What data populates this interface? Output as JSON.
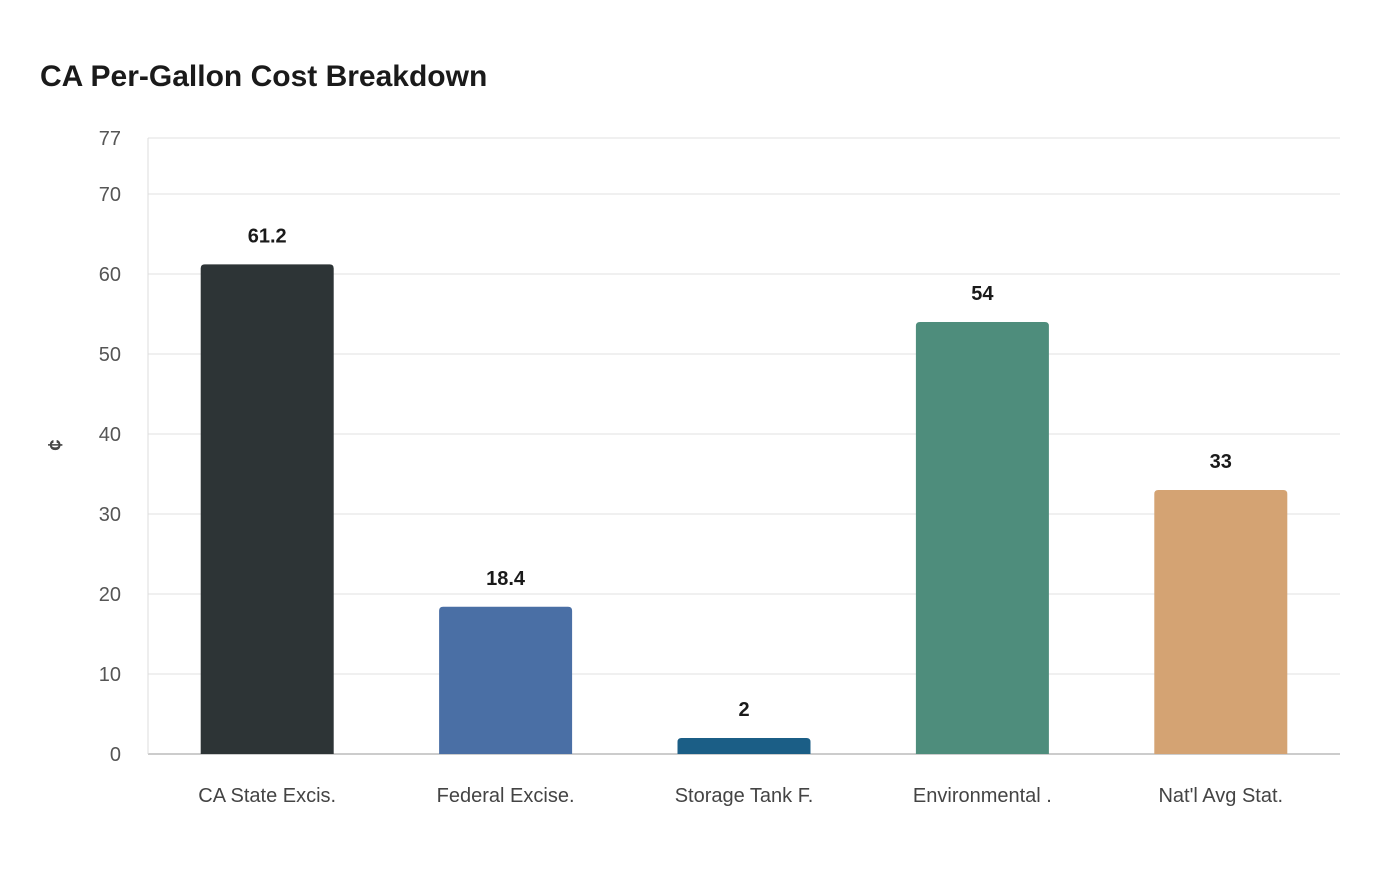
{
  "chart_data": {
    "type": "bar",
    "title": "CA Per-Gallon Cost Breakdown",
    "xlabel": "",
    "ylabel": "¢",
    "categories": [
      "CA State Excis.",
      "Federal Excise.",
      "Storage Tank F.",
      "Environmental .",
      "Nat'l Avg Stat."
    ],
    "values": [
      61.2,
      18.4,
      2,
      54,
      33
    ],
    "data_labels": [
      "61.2",
      "18.4",
      "2",
      "54",
      "33"
    ],
    "colors": [
      "#2d3436",
      "#4a6fa5",
      "#1b5e86",
      "#4e8d7c",
      "#d4a373"
    ],
    "ylim": [
      0,
      77
    ],
    "yticks": [
      0,
      10,
      20,
      30,
      40,
      50,
      60,
      70,
      77
    ],
    "grid": true
  }
}
